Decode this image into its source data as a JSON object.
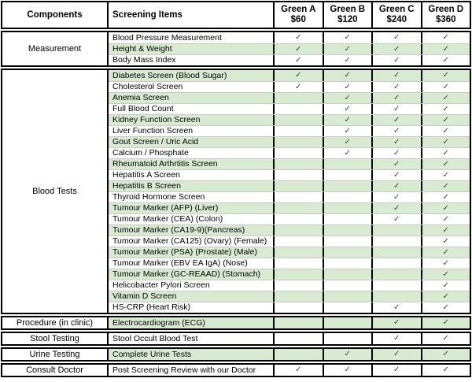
{
  "header": {
    "components_label": "Components",
    "screening_items_label": "Screening Items",
    "packages": [
      {
        "name": "Green A",
        "price": "$60"
      },
      {
        "name": "Green B",
        "price": "$120"
      },
      {
        "name": "Green C",
        "price": "$240"
      },
      {
        "name": "Green D",
        "price": "$360"
      }
    ]
  },
  "check_glyph": "✓",
  "colors": {
    "row_highlight": "#d9ead3",
    "row_line": "#c9c9c9",
    "border": "#000000",
    "check": "#3a4034"
  },
  "sections": [
    {
      "component": "Measurement",
      "items": [
        {
          "label": "Blood Pressure Measurement",
          "checks": [
            true,
            true,
            true,
            true
          ]
        },
        {
          "label": "Height & Weight",
          "checks": [
            true,
            true,
            true,
            true
          ]
        },
        {
          "label": "Body Mass Index",
          "checks": [
            true,
            true,
            true,
            true
          ]
        }
      ]
    },
    {
      "component": "Blood Tests",
      "items": [
        {
          "label": "Diabetes Screen (Blood Sugar)",
          "checks": [
            true,
            true,
            true,
            true
          ]
        },
        {
          "label": "Cholesterol Screen",
          "checks": [
            true,
            true,
            true,
            true
          ]
        },
        {
          "label": "Anemia Screen",
          "checks": [
            false,
            true,
            true,
            true
          ]
        },
        {
          "label": "Full Blood Count",
          "checks": [
            false,
            true,
            true,
            true
          ]
        },
        {
          "label": "Kidney Function Screen",
          "checks": [
            false,
            true,
            true,
            true
          ]
        },
        {
          "label": "Liver Function Screen",
          "checks": [
            false,
            true,
            true,
            true
          ]
        },
        {
          "label": "Gout Screen / Uric Acid",
          "checks": [
            false,
            true,
            true,
            true
          ]
        },
        {
          "label": "Calcium / Phosphate",
          "checks": [
            false,
            true,
            true,
            true
          ]
        },
        {
          "label": "Rheumatoid Arthrtitis Screen",
          "checks": [
            false,
            false,
            true,
            true
          ]
        },
        {
          "label": "Hepatitis A Screen",
          "checks": [
            false,
            false,
            true,
            true
          ]
        },
        {
          "label": "Hepatitis B Screen",
          "checks": [
            false,
            false,
            true,
            true
          ]
        },
        {
          "label": "Thyroid Hormone Screen",
          "checks": [
            false,
            false,
            true,
            true
          ]
        },
        {
          "label": "Tumour Marker (AFP) (Liver)",
          "checks": [
            false,
            false,
            true,
            true
          ]
        },
        {
          "label": "Tumour Marker (CEA) (Colon)",
          "checks": [
            false,
            false,
            true,
            true
          ]
        },
        {
          "label": "Tumour Marker (CA19-9)(Pancreas)",
          "checks": [
            false,
            false,
            false,
            true
          ]
        },
        {
          "label": "Tumour Marker (CA125) (Ovary) (Female)",
          "checks": [
            false,
            false,
            false,
            true
          ]
        },
        {
          "label": "Tumour Marker (PSA) (Prostate) (Male)",
          "checks": [
            false,
            false,
            false,
            true
          ]
        },
        {
          "label": "Tumour Marker (EBV EA IgA) (Nose)",
          "checks": [
            false,
            false,
            false,
            true
          ]
        },
        {
          "label": "Tumour Marker (GC-REAAD) (Stomach)",
          "checks": [
            false,
            false,
            false,
            true
          ]
        },
        {
          "label": "Helicobacter Pylori Screen",
          "checks": [
            false,
            false,
            false,
            true
          ]
        },
        {
          "label": "Vitamin D Screen",
          "checks": [
            false,
            false,
            false,
            true
          ]
        },
        {
          "label": "HS-CRP (Heart Risk)",
          "checks": [
            false,
            false,
            true,
            true
          ]
        }
      ]
    },
    {
      "component": "Procedure (in clinic)",
      "items": [
        {
          "label": "Electrocardiogram (ECG)",
          "checks": [
            false,
            false,
            true,
            true
          ]
        }
      ]
    },
    {
      "component": "Stool Testing",
      "items": [
        {
          "label": "Stool Occult Blood Test",
          "checks": [
            false,
            false,
            true,
            true
          ]
        }
      ]
    },
    {
      "component": "Urine Testing",
      "items": [
        {
          "label": "Complete Urine Tests",
          "checks": [
            false,
            true,
            true,
            true
          ]
        }
      ]
    },
    {
      "component": "Consult Doctor",
      "items": [
        {
          "label": "Post Screening Review with our Doctor",
          "checks": [
            true,
            true,
            true,
            true
          ]
        }
      ]
    }
  ]
}
